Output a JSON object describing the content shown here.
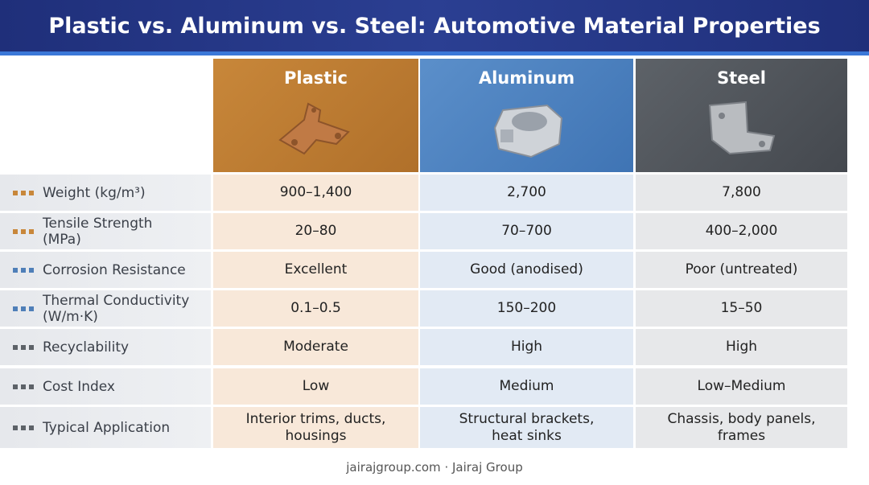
{
  "header": {
    "title": "Plastic vs. Aluminum vs. Steel: Automotive Material Properties"
  },
  "table": {
    "columns": [
      "Plastic",
      "Aluminum",
      "Steel"
    ],
    "rows": [
      {
        "label": "Weight (kg/m³)",
        "cells": [
          "900–1,400",
          "2,700",
          "7,800"
        ]
      },
      {
        "label": "Tensile Strength (MPa)",
        "cells": [
          "20–80",
          "70–700",
          "400–2,000"
        ]
      },
      {
        "label": "Corrosion Resistance",
        "cells": [
          "Excellent",
          "Good (anodised)",
          "Poor (untreated)"
        ]
      },
      {
        "label": "Thermal Conductivity (W/m·K)",
        "cells": [
          "0.1–0.5",
          "150–200",
          "15–50"
        ]
      },
      {
        "label": "Recyclability",
        "cells": [
          "Moderate",
          "High",
          "High"
        ]
      },
      {
        "label": "Cost Index",
        "cells": [
          "Low",
          "Medium",
          "Low–Medium"
        ]
      },
      {
        "label": "Typical Application",
        "cells": [
          "Interior trims, ducts, housings",
          "Structural brackets, heat sinks",
          "Chassis, body panels, frames"
        ]
      }
    ]
  },
  "footer": "jairajgroup.com · Jairaj Group"
}
